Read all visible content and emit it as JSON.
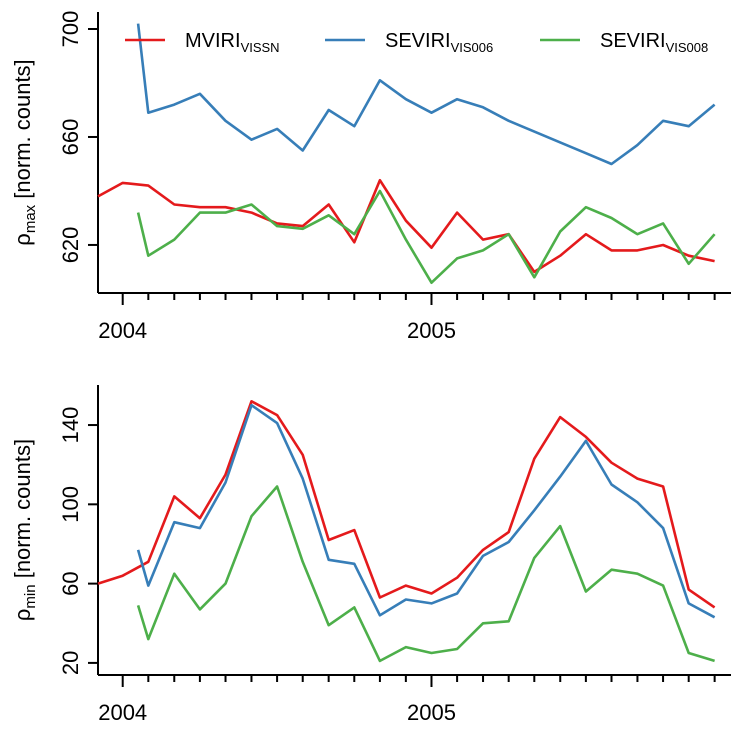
{
  "chart_data": [
    {
      "type": "line",
      "ylabel": {
        "symbol": "ρ",
        "subscript": "max",
        "suffix": " [norm. counts]"
      },
      "xlim": [
        2003.92,
        2005.97
      ],
      "xticks": [
        2004,
        2005
      ],
      "xminorticks": [
        2004.083,
        2004.167,
        2004.25,
        2004.333,
        2004.417,
        2004.5,
        2004.583,
        2004.667,
        2004.75,
        2004.833,
        2004.917,
        2005.083,
        2005.167,
        2005.25,
        2005.333,
        2005.417,
        2005.5,
        2005.583,
        2005.667,
        2005.75,
        2005.833,
        2005.917
      ],
      "ylim": [
        602.2,
        706.3
      ],
      "yticks": [
        620,
        660,
        700
      ],
      "legend": "top",
      "series": [
        {
          "name": "MVIRI",
          "name_subscript": "VISSN",
          "color": "#e41a1c",
          "x": [
            2003.92,
            2004,
            2004.083,
            2004.167,
            2004.25,
            2004.333,
            2004.417,
            2004.5,
            2004.583,
            2004.667,
            2004.75,
            2004.833,
            2004.917,
            2005,
            2005.083,
            2005.167,
            2005.25,
            2005.333,
            2005.417,
            2005.5,
            2005.583,
            2005.667,
            2005.75,
            2005.833,
            2005.917
          ],
          "values": [
            638,
            643,
            642,
            635,
            634,
            634,
            632,
            628,
            627,
            635,
            621,
            644,
            629,
            619,
            632,
            622,
            624,
            610,
            616,
            624,
            618,
            618,
            620,
            616,
            614
          ]
        },
        {
          "name": "SEVIRI",
          "name_subscript": "VIS006",
          "color": "#377eb8",
          "x": [
            2004.05,
            2004.083,
            2004.167,
            2004.25,
            2004.333,
            2004.417,
            2004.5,
            2004.583,
            2004.667,
            2004.75,
            2004.833,
            2004.917,
            2005,
            2005.083,
            2005.167,
            2005.25,
            2005.333,
            2005.417,
            2005.5,
            2005.583,
            2005.667,
            2005.75,
            2005.833,
            2005.917
          ],
          "values": [
            702,
            669,
            672,
            676,
            666,
            659,
            663,
            655,
            670,
            664,
            681,
            674,
            669,
            674,
            671,
            666,
            662,
            658,
            654,
            650,
            657,
            666,
            664,
            672
          ]
        },
        {
          "name": "SEVIRI",
          "name_subscript": "VIS008",
          "color": "#4daf4a",
          "x": [
            2004.05,
            2004.083,
            2004.167,
            2004.25,
            2004.333,
            2004.417,
            2004.5,
            2004.583,
            2004.667,
            2004.75,
            2004.833,
            2004.917,
            2005,
            2005.083,
            2005.167,
            2005.25,
            2005.333,
            2005.417,
            2005.5,
            2005.583,
            2005.667,
            2005.75,
            2005.833,
            2005.917
          ],
          "values": [
            632,
            616,
            622,
            632,
            632,
            635,
            627,
            626,
            631,
            624,
            640,
            622,
            606,
            615,
            618,
            624,
            608,
            625,
            634,
            630,
            624,
            628,
            613,
            624
          ]
        }
      ]
    },
    {
      "type": "line",
      "ylabel": {
        "symbol": "ρ",
        "subscript": "min",
        "suffix": " [norm. counts]"
      },
      "xlim": [
        2003.92,
        2005.97
      ],
      "xticks": [
        2004,
        2005
      ],
      "xminorticks": [
        2004.083,
        2004.167,
        2004.25,
        2004.333,
        2004.417,
        2004.5,
        2004.583,
        2004.667,
        2004.75,
        2004.833,
        2004.917,
        2005.083,
        2005.167,
        2005.25,
        2005.333,
        2005.417,
        2005.5,
        2005.583,
        2005.667,
        2005.75,
        2005.833,
        2005.917
      ],
      "ylim": [
        13.9,
        160.2
      ],
      "yticks": [
        20,
        60,
        100,
        140
      ],
      "series": [
        {
          "color": "#e41a1c",
          "x": [
            2003.92,
            2004,
            2004.083,
            2004.167,
            2004.25,
            2004.333,
            2004.417,
            2004.5,
            2004.583,
            2004.667,
            2004.75,
            2004.833,
            2004.917,
            2005,
            2005.083,
            2005.167,
            2005.25,
            2005.333,
            2005.417,
            2005.5,
            2005.583,
            2005.667,
            2005.75,
            2005.833,
            2005.917
          ],
          "values": [
            60,
            64,
            71,
            104,
            93,
            115,
            152,
            145,
            125,
            82,
            87,
            53,
            59,
            55,
            63,
            77,
            86,
            123,
            144,
            134,
            121,
            113,
            109,
            57,
            48
          ]
        },
        {
          "color": "#377eb8",
          "x": [
            2004.05,
            2004.083,
            2004.167,
            2004.25,
            2004.333,
            2004.417,
            2004.5,
            2004.583,
            2004.667,
            2004.75,
            2004.833,
            2004.917,
            2005,
            2005.083,
            2005.167,
            2005.25,
            2005.333,
            2005.417,
            2005.5,
            2005.583,
            2005.667,
            2005.75,
            2005.833,
            2005.917
          ],
          "values": [
            77,
            59,
            91,
            88,
            111,
            150,
            141,
            113,
            72,
            70,
            44,
            52,
            50,
            55,
            74,
            81,
            97,
            114,
            132,
            110,
            101,
            88,
            50,
            43
          ]
        },
        {
          "color": "#4daf4a",
          "x": [
            2004.05,
            2004.083,
            2004.167,
            2004.25,
            2004.333,
            2004.417,
            2004.5,
            2004.583,
            2004.667,
            2004.75,
            2004.833,
            2004.917,
            2005,
            2005.083,
            2005.167,
            2005.25,
            2005.333,
            2005.417,
            2005.5,
            2005.583,
            2005.667,
            2005.75,
            2005.833,
            2005.917
          ],
          "values": [
            49,
            32,
            65,
            47,
            60,
            94,
            109,
            71,
            39,
            48,
            21,
            28,
            25,
            27,
            40,
            41,
            73,
            89,
            56,
            67,
            65,
            59,
            25,
            21
          ]
        }
      ]
    }
  ]
}
